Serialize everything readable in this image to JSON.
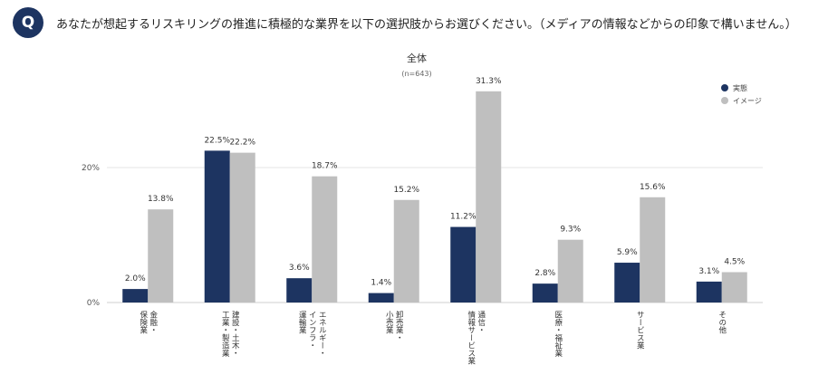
{
  "question": {
    "badge": "Q",
    "text": "あなたが想起するリスキリングの推進に積極的な業界を以下の選択肢からお選びください。（メディアの情報などからの印象で構いません。）"
  },
  "colors": {
    "actual": "#1d3461",
    "image": "#bfbfbf",
    "gridline": "#e6e6e6",
    "badge": "#1d3461"
  },
  "chart_data": {
    "type": "bar",
    "title": "全体",
    "subtitle": "(n=643)",
    "categories": [
      [
        "金融・",
        "保険業"
      ],
      [
        "建設・土木・",
        "工業・製造業"
      ],
      [
        "エネルギー・",
        "インフラ・",
        "運輸業"
      ],
      [
        "卸売業・",
        "小売業"
      ],
      [
        "通信・",
        "情報サービス業"
      ],
      [
        "医療・福祉業"
      ],
      [
        "サービス業"
      ],
      [
        "その他"
      ]
    ],
    "series": [
      {
        "name": "実態",
        "values": [
          2.0,
          22.5,
          3.6,
          1.4,
          11.2,
          2.8,
          5.9,
          3.1
        ]
      },
      {
        "name": "イメージ",
        "values": [
          13.8,
          22.2,
          18.7,
          15.2,
          31.3,
          9.3,
          15.6,
          4.5
        ]
      }
    ],
    "value_suffix": "%",
    "yticks": [
      0,
      20
    ],
    "ytick_labels": [
      "0%",
      "20%"
    ],
    "ylim": [
      0,
      35
    ],
    "legend_position": "top-right"
  }
}
